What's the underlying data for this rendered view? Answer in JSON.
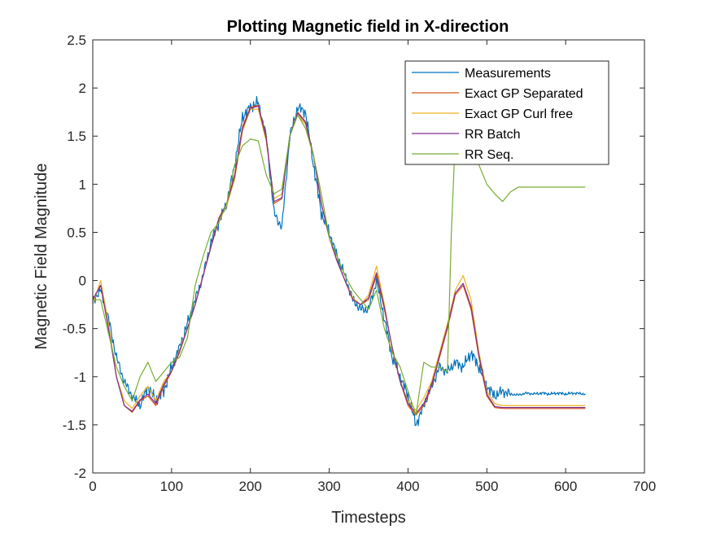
{
  "chart_data": {
    "type": "line",
    "title": "Plotting Magnetic field in X-direction",
    "xlabel": "Timesteps",
    "ylabel": "Magnetic Field Magnitude",
    "xlim": [
      0,
      700
    ],
    "ylim": [
      -2,
      2.5
    ],
    "xticks": [
      0,
      100,
      200,
      300,
      400,
      500,
      600,
      700
    ],
    "yticks": [
      -2,
      -1.5,
      -1,
      -0.5,
      0,
      0.5,
      1,
      1.5,
      2,
      2.5
    ],
    "grid": false,
    "legend_position": "top-right",
    "series": [
      {
        "name": "Measurements",
        "color": "#0072BD",
        "noise": 0.07,
        "x": [
          0,
          10,
          20,
          30,
          40,
          50,
          60,
          70,
          80,
          90,
          100,
          110,
          120,
          130,
          140,
          150,
          160,
          170,
          180,
          190,
          200,
          210,
          220,
          230,
          240,
          250,
          260,
          270,
          280,
          290,
          300,
          310,
          320,
          330,
          340,
          350,
          360,
          370,
          380,
          390,
          400,
          410,
          420,
          430,
          440,
          450,
          460,
          470,
          480,
          490,
          500,
          510,
          520,
          530,
          540,
          550,
          560,
          570,
          580,
          590,
          600,
          610,
          625
        ],
        "y": [
          -0.2,
          -0.1,
          -0.4,
          -0.8,
          -1.05,
          -1.2,
          -1.3,
          -1.1,
          -1.25,
          -1.15,
          -0.9,
          -0.7,
          -0.45,
          -0.2,
          0.05,
          0.4,
          0.6,
          0.8,
          1.2,
          1.7,
          1.8,
          1.85,
          1.5,
          0.7,
          0.55,
          1.5,
          1.8,
          1.75,
          1.2,
          0.7,
          0.5,
          0.25,
          0.05,
          -0.2,
          -0.3,
          -0.3,
          0.0,
          -0.4,
          -0.8,
          -1.0,
          -1.2,
          -1.5,
          -1.3,
          -1.1,
          -0.9,
          -0.95,
          -0.85,
          -0.9,
          -0.75,
          -0.9,
          -1.1,
          -1.2,
          -1.15,
          -1.18,
          -1.19,
          -1.17,
          -1.18,
          -1.17,
          -1.18,
          -1.17,
          -1.18,
          -1.17,
          -1.18
        ]
      },
      {
        "name": "Exact GP Separated",
        "color": "#D95319",
        "x": [
          0,
          10,
          20,
          30,
          40,
          50,
          60,
          70,
          80,
          90,
          100,
          110,
          120,
          130,
          140,
          150,
          160,
          170,
          180,
          190,
          200,
          210,
          220,
          230,
          240,
          250,
          260,
          270,
          280,
          290,
          300,
          310,
          320,
          330,
          340,
          350,
          360,
          370,
          380,
          390,
          400,
          410,
          420,
          430,
          440,
          450,
          460,
          470,
          480,
          490,
          500,
          510,
          520,
          530,
          540,
          560,
          580,
          600,
          625
        ],
        "y": [
          -0.2,
          -0.05,
          -0.5,
          -1.0,
          -1.3,
          -1.37,
          -1.25,
          -1.2,
          -1.3,
          -1.1,
          -0.95,
          -0.75,
          -0.5,
          -0.25,
          0.05,
          0.35,
          0.65,
          0.8,
          1.1,
          1.6,
          1.8,
          1.82,
          1.5,
          0.8,
          0.85,
          1.5,
          1.75,
          1.65,
          1.3,
          0.8,
          0.45,
          0.2,
          0.0,
          -0.2,
          -0.25,
          -0.2,
          0.05,
          -0.3,
          -0.7,
          -1.05,
          -1.3,
          -1.4,
          -1.3,
          -1.1,
          -0.8,
          -0.5,
          -0.15,
          -0.05,
          -0.3,
          -0.8,
          -1.2,
          -1.32,
          -1.33,
          -1.33,
          -1.33,
          -1.33,
          -1.33,
          -1.33,
          -1.33
        ]
      },
      {
        "name": "Exact GP Curl free",
        "color": "#EDB120",
        "x": [
          0,
          10,
          20,
          30,
          40,
          50,
          60,
          70,
          80,
          90,
          100,
          110,
          120,
          130,
          140,
          150,
          160,
          170,
          180,
          190,
          200,
          210,
          220,
          230,
          240,
          250,
          260,
          270,
          280,
          290,
          300,
          310,
          320,
          330,
          340,
          350,
          360,
          370,
          380,
          390,
          400,
          410,
          420,
          430,
          440,
          450,
          460,
          470,
          480,
          490,
          500,
          510,
          520,
          530,
          540,
          560,
          580,
          600,
          625
        ],
        "y": [
          -0.25,
          0.0,
          -0.45,
          -1.0,
          -1.25,
          -1.33,
          -1.2,
          -1.1,
          -1.25,
          -1.05,
          -0.95,
          -0.72,
          -0.5,
          -0.25,
          0.05,
          0.35,
          0.62,
          0.78,
          1.05,
          1.55,
          1.78,
          1.78,
          1.45,
          0.85,
          0.9,
          1.5,
          1.72,
          1.62,
          1.3,
          0.8,
          0.45,
          0.2,
          0.0,
          -0.18,
          -0.25,
          -0.15,
          0.15,
          -0.25,
          -0.72,
          -1.05,
          -1.25,
          -1.35,
          -1.22,
          -1.05,
          -0.75,
          -0.45,
          -0.1,
          0.05,
          -0.2,
          -0.75,
          -1.15,
          -1.28,
          -1.3,
          -1.3,
          -1.3,
          -1.3,
          -1.3,
          -1.3,
          -1.3
        ]
      },
      {
        "name": "RR Batch",
        "color": "#7E2F8E",
        "x": [
          0,
          10,
          20,
          30,
          40,
          50,
          60,
          70,
          80,
          90,
          100,
          110,
          120,
          130,
          140,
          150,
          160,
          170,
          180,
          190,
          200,
          210,
          220,
          230,
          240,
          250,
          260,
          270,
          280,
          290,
          300,
          310,
          320,
          330,
          340,
          350,
          360,
          370,
          380,
          390,
          400,
          410,
          420,
          430,
          440,
          450,
          460,
          470,
          480,
          490,
          500,
          510,
          520,
          530,
          540,
          560,
          580,
          600,
          625
        ],
        "y": [
          -0.2,
          -0.05,
          -0.5,
          -1.0,
          -1.3,
          -1.36,
          -1.24,
          -1.18,
          -1.28,
          -1.08,
          -0.94,
          -0.74,
          -0.5,
          -0.25,
          0.05,
          0.35,
          0.64,
          0.8,
          1.08,
          1.58,
          1.79,
          1.81,
          1.48,
          0.82,
          0.86,
          1.5,
          1.74,
          1.64,
          1.3,
          0.8,
          0.45,
          0.2,
          0.0,
          -0.2,
          -0.25,
          -0.18,
          0.08,
          -0.28,
          -0.7,
          -1.05,
          -1.28,
          -1.38,
          -1.28,
          -1.08,
          -0.78,
          -0.48,
          -0.13,
          -0.03,
          -0.27,
          -0.78,
          -1.18,
          -1.31,
          -1.32,
          -1.32,
          -1.32,
          -1.32,
          -1.32,
          -1.32,
          -1.32
        ]
      },
      {
        "name": "RR Seq.",
        "color": "#77AC30",
        "x": [
          0,
          10,
          20,
          30,
          40,
          50,
          60,
          70,
          80,
          90,
          100,
          110,
          120,
          130,
          140,
          150,
          160,
          170,
          180,
          190,
          200,
          210,
          220,
          230,
          240,
          250,
          260,
          270,
          280,
          290,
          300,
          310,
          320,
          330,
          340,
          350,
          360,
          370,
          380,
          390,
          400,
          410,
          420,
          430,
          440,
          450,
          455,
          460,
          470,
          480,
          490,
          500,
          510,
          520,
          530,
          540,
          560,
          580,
          600,
          625
        ],
        "y": [
          -0.2,
          -0.2,
          -0.55,
          -0.9,
          -1.1,
          -1.25,
          -1.0,
          -0.85,
          -1.05,
          -0.95,
          -0.85,
          -0.8,
          -0.6,
          -0.05,
          0.25,
          0.5,
          0.6,
          0.8,
          1.2,
          1.4,
          1.47,
          1.45,
          1.1,
          0.9,
          0.95,
          1.5,
          1.72,
          1.58,
          1.3,
          0.9,
          0.45,
          0.25,
          0.05,
          -0.1,
          -0.2,
          -0.3,
          -0.1,
          -0.5,
          -0.75,
          -0.9,
          -1.15,
          -1.4,
          -0.85,
          -0.9,
          -0.9,
          -0.95,
          0.5,
          1.5,
          1.6,
          1.4,
          1.2,
          1.0,
          0.9,
          0.82,
          0.92,
          0.97,
          0.97,
          0.97,
          0.97,
          0.97
        ]
      }
    ]
  }
}
